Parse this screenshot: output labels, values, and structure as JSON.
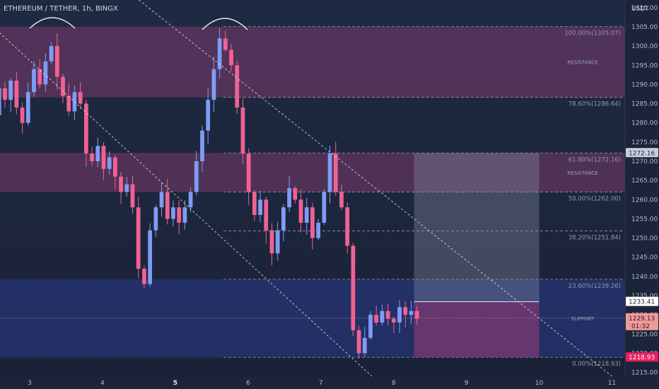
{
  "header": {
    "symbol": "ETHEREUM / TETHER, 1h, BINGX"
  },
  "axis": {
    "currency": "USDT"
  },
  "colors": {
    "bull": "#7f9cf5",
    "bear": "#f06292",
    "resistance_zone": "#7b3a6b",
    "support_zone": "#2a3a8a",
    "tp_box": "#8a93a8",
    "sl_box": "#a03a78",
    "last_price_tag": "#ef9a9a",
    "low_tag": "#e91e63"
  },
  "chart_data": {
    "type": "candlestick",
    "x_ticks": [
      {
        "label": "3",
        "x": 0.5
      },
      {
        "label": "4",
        "x": 1.5
      },
      {
        "label": "5",
        "x": 2.5
      },
      {
        "label": "6",
        "x": 3.5
      },
      {
        "label": "7",
        "x": 4.5
      },
      {
        "label": "8",
        "x": 5.5
      },
      {
        "label": "9",
        "x": 6.5
      },
      {
        "label": "10",
        "x": 7.5
      },
      {
        "label": "11",
        "x": 8.5
      }
    ],
    "ylim": [
      1214,
      1312
    ],
    "y_ticks": [
      "1215.00",
      "1220.00",
      "1225.00",
      "1230.00",
      "1235.00",
      "1240.00",
      "1245.00",
      "1250.00",
      "1255.00",
      "1260.00",
      "1265.00",
      "1270.00",
      "1275.00",
      "1280.00",
      "1285.00",
      "1290.00",
      "1295.00",
      "1300.00",
      "1305.00",
      "1310.00"
    ],
    "price_path": [
      1276,
      1282,
      1289,
      1286,
      1291,
      1284,
      1280,
      1288,
      1294,
      1290,
      1296,
      1300,
      1292,
      1287,
      1283,
      1288,
      1285,
      1272,
      1270,
      1274,
      1268,
      1271,
      1266,
      1262,
      1264,
      1258,
      1242,
      1238,
      1252,
      1258,
      1262,
      1255,
      1258,
      1254,
      1258,
      1262,
      1270,
      1278,
      1286,
      1294,
      1302,
      1299,
      1295,
      1284,
      1272,
      1262,
      1256,
      1260,
      1252,
      1246,
      1252,
      1258,
      1263,
      1260,
      1254,
      1258,
      1250,
      1254,
      1262,
      1272,
      1262,
      1258,
      1248,
      1226,
      1220,
      1224,
      1230,
      1228,
      1231,
      1229,
      1228,
      1232,
      1230,
      1231,
      1229
    ],
    "fib_levels": [
      {
        "label": "100.00%(1305.07)",
        "price": 1305.07
      },
      {
        "label": "78.60%(1286.64)",
        "price": 1286.64
      },
      {
        "label": "61.80%(1272.16)",
        "price": 1272.16
      },
      {
        "label": "50.00%(1262.00)",
        "price": 1262.0
      },
      {
        "label": "38.20%(1251.84)",
        "price": 1251.84
      },
      {
        "label": "23.60%(1239.26)",
        "price": 1239.26
      },
      {
        "label": "0.00%(1218.93)",
        "price": 1218.93
      }
    ],
    "zones": [
      {
        "label": "RESISTANCE",
        "top": 1305.07,
        "bottom": 1286.64,
        "kind": "resistance"
      },
      {
        "label": "RESISTANCE",
        "top": 1272.16,
        "bottom": 1262.0,
        "kind": "resistance"
      },
      {
        "label": "SUPPORT",
        "top": 1239.26,
        "bottom": 1218.93,
        "kind": "support"
      }
    ],
    "position": {
      "entry": 1233.41,
      "target": 1272.16,
      "stop": 1218.93,
      "x_start": 5.78,
      "x_end": 7.5
    },
    "price_tags": [
      {
        "label": "1272.16",
        "price": 1272.16,
        "style": "light"
      },
      {
        "label": "1233.41",
        "price": 1233.41,
        "style": "white"
      },
      {
        "label": "1229.13",
        "sublabel": "01:32",
        "price": 1229.13,
        "style": "pink"
      },
      {
        "label": "1218.93",
        "price": 1218.93,
        "style": "red"
      }
    ],
    "trend_lines": [
      {
        "x1": 0.0,
        "y1": 1305,
        "x2": 5.2,
        "y2": 1214
      },
      {
        "x1": 2.0,
        "y1": 1312,
        "x2": 8.5,
        "y2": 1214
      }
    ]
  }
}
